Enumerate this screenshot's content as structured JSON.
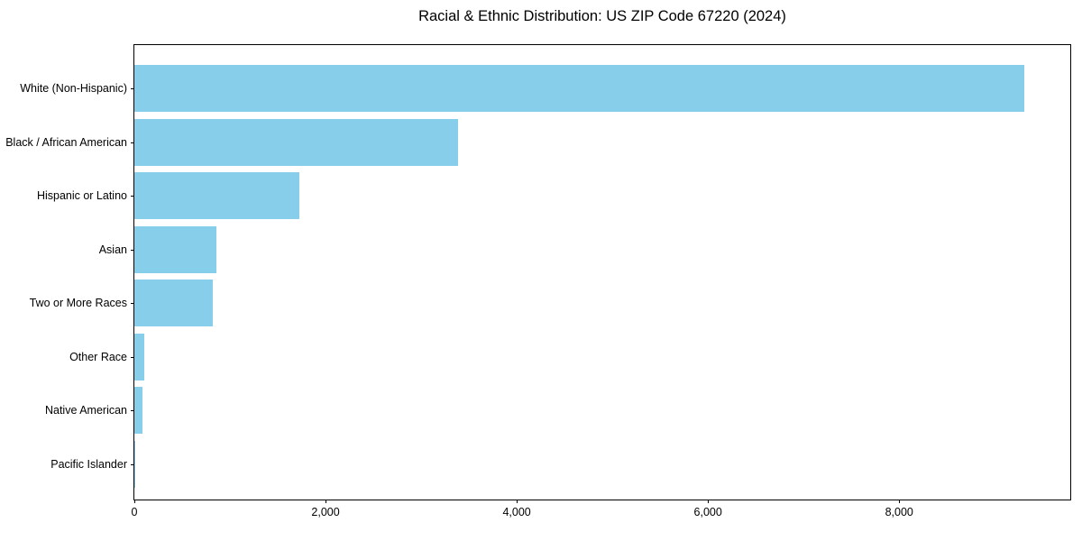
{
  "chart_data": {
    "type": "bar",
    "orientation": "horizontal",
    "title": "Racial & Ethnic Distribution: US ZIP Code 67220 (2024)",
    "categories": [
      "White (Non-Hispanic)",
      "Black / African American",
      "Hispanic or Latino",
      "Asian",
      "Two or More Races",
      "Other Race",
      "Native American",
      "Pacific Islander"
    ],
    "values": [
      9310,
      3390,
      1730,
      860,
      825,
      100,
      85,
      5
    ],
    "xlabel": "",
    "ylabel": "",
    "xlim": [
      0,
      9790
    ],
    "x_ticks": [
      0,
      2000,
      4000,
      6000,
      8000
    ],
    "x_tick_labels": [
      "0",
      "2,000",
      "4,000",
      "6,000",
      "8,000"
    ],
    "bar_color": "#87CEEB",
    "spine_color": "#000000",
    "grid": false,
    "legend": null
  }
}
